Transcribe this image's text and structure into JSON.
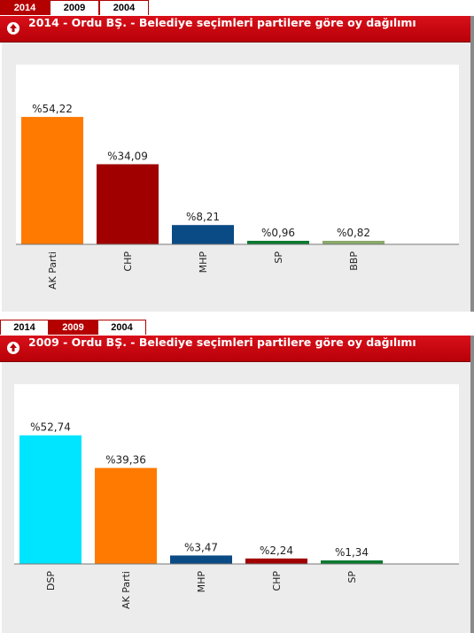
{
  "panels": [
    {
      "tabs": [
        "2014",
        "2009",
        "2004"
      ],
      "active_tab": "2014",
      "title": "2014 - Ordu BŞ. - Belediye seçimleri partilere göre oy dağılımı"
    },
    {
      "tabs": [
        "2014",
        "2009",
        "2004"
      ],
      "active_tab": "2009",
      "title": "2009 - Ordu BŞ. - Belediye seçimleri partilere göre oy dağılımı"
    }
  ],
  "chart_data": [
    {
      "type": "bar",
      "title": "2014 - Ordu BŞ. - Belediye seçimleri partilere göre oy dağılımı",
      "categories": [
        "AK Parti",
        "CHP",
        "MHP",
        "SP",
        "BBP"
      ],
      "values": [
        54.22,
        34.09,
        8.21,
        0.96,
        0.82
      ],
      "labels": [
        "%54,22",
        "%34,09",
        "%8,21",
        "%0,96",
        "%0,82"
      ],
      "colors": [
        "#ff7a00",
        "#a00000",
        "#0a4a85",
        "#0a7a30",
        "#8aaa6a"
      ],
      "ylim": [
        0,
        55
      ],
      "grid": false
    },
    {
      "type": "bar",
      "title": "2009 - Ordu BŞ. - Belediye seçimleri partilere göre oy dağılımı",
      "categories": [
        "DSP",
        "AK Parti",
        "MHP",
        "CHP",
        "SP"
      ],
      "values": [
        52.74,
        39.36,
        3.47,
        2.24,
        1.34
      ],
      "labels": [
        "%52,74",
        "%39,36",
        "%3,47",
        "%2,24",
        "%1,34"
      ],
      "colors": [
        "#00e5ff",
        "#ff7a00",
        "#0a4a85",
        "#a00000",
        "#0a7a30"
      ],
      "ylim": [
        0,
        53
      ],
      "grid": false
    }
  ]
}
